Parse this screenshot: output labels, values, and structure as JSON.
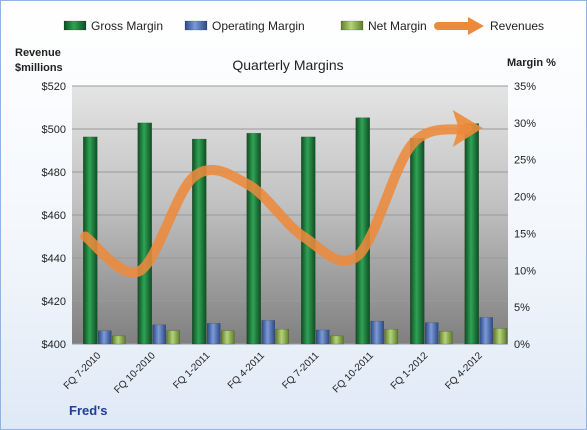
{
  "chart_data": {
    "type": "bar",
    "title": "Quarterly Margins",
    "categories": [
      "FQ 7-2010",
      "FQ 10-2010",
      "FQ 1-2011",
      "FQ 4-2011",
      "FQ 7-2011",
      "FQ 10-2011",
      "FQ 1-2012",
      "FQ 4-2012"
    ],
    "y_left": {
      "label_line1": "Revenue",
      "label_line2": "$millions",
      "range": [
        400,
        520
      ],
      "ticks": [
        "$400",
        "$420",
        "$440",
        "$460",
        "$480",
        "$500",
        "$520"
      ]
    },
    "y_right": {
      "label": "Margin %",
      "range": [
        0,
        35
      ],
      "ticks": [
        "0%",
        "5%",
        "10%",
        "15%",
        "20%",
        "25%",
        "30%",
        "35%"
      ]
    },
    "series": [
      {
        "name": "Gross Margin",
        "type": "bar",
        "axis": "right",
        "color": "#1e7b3a",
        "values": [
          28.1,
          30.0,
          27.8,
          28.6,
          28.1,
          30.7,
          27.9,
          29.9
        ]
      },
      {
        "name": "Operating Margin",
        "type": "bar",
        "axis": "right",
        "color": "#4f73b8",
        "values": [
          1.8,
          2.6,
          2.8,
          3.2,
          1.9,
          3.1,
          2.9,
          3.6
        ]
      },
      {
        "name": "Net Margin",
        "type": "bar",
        "axis": "right",
        "color": "#92b650",
        "values": [
          1.1,
          1.8,
          1.8,
          2.0,
          1.1,
          2.0,
          1.7,
          2.1
        ]
      },
      {
        "name": "Revenues",
        "type": "line",
        "axis": "left",
        "color": "#ec8a3b",
        "values": [
          450,
          434,
          478,
          474,
          450,
          441,
          493,
          500
        ]
      }
    ],
    "legend_position": "top",
    "grid": true
  },
  "footer": "Fred's"
}
